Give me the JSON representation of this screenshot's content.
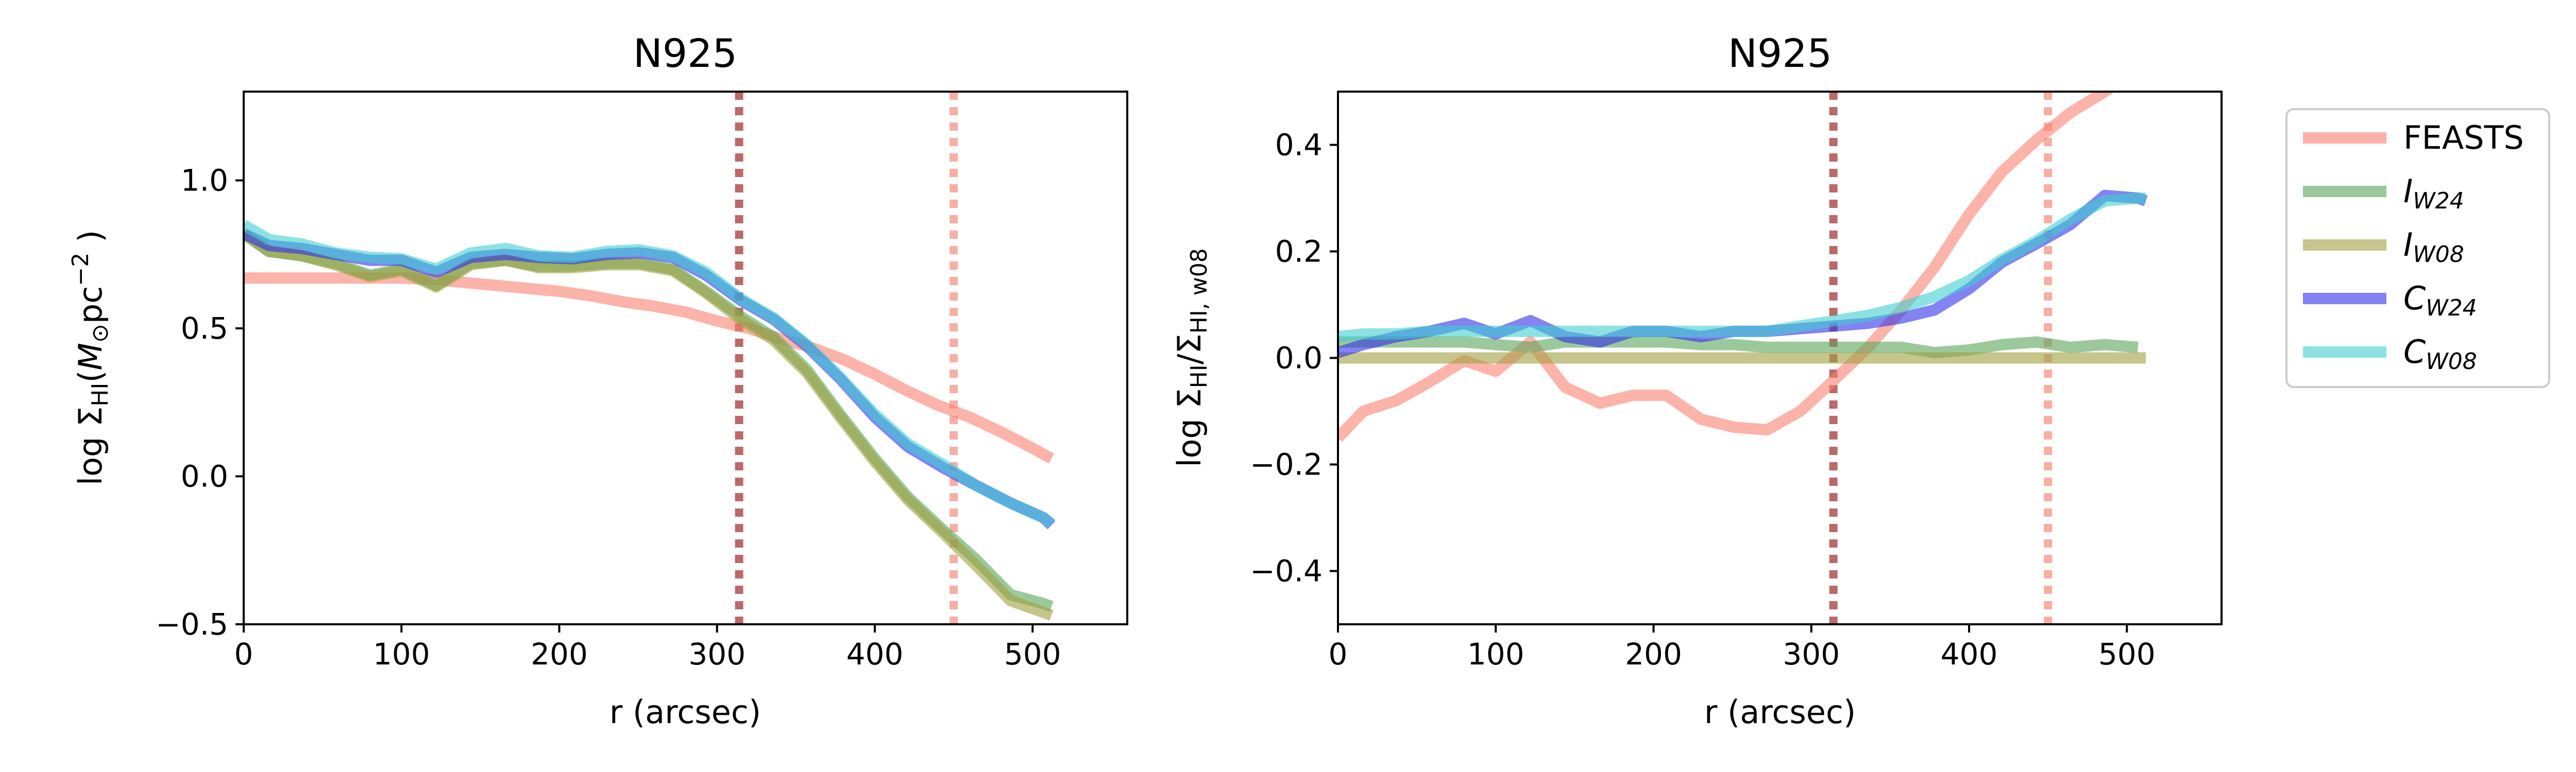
{
  "legend": {
    "entries": [
      {
        "key": "feasts",
        "label": "FEASTS",
        "italic": false,
        "sub": "",
        "color": "#fa8072"
      },
      {
        "key": "iw24",
        "label": "I",
        "italic": true,
        "sub": "W24",
        "color": "#5aa55a"
      },
      {
        "key": "iw08",
        "label": "I",
        "italic": true,
        "sub": "W08",
        "color": "#a0a040"
      },
      {
        "key": "cw24",
        "label": "C",
        "italic": true,
        "sub": "W24",
        "color": "#3030e8"
      },
      {
        "key": "cw08",
        "label": "C",
        "italic": true,
        "sub": "W08",
        "color": "#40cfd0"
      }
    ],
    "placement": "right, outside"
  },
  "chart_data": [
    {
      "type": "line",
      "title": "N925",
      "xlabel": "r (arcsec)",
      "ylabel": "log Σ_HI (M_⊙ pc^-2 )",
      "xlim": [
        0,
        560
      ],
      "ylim": [
        -0.5,
        1.3
      ],
      "xticks": [
        0,
        100,
        200,
        300,
        400,
        500
      ],
      "yticks": [
        -0.5,
        0.0,
        0.5,
        1.0
      ],
      "ytick_labels": [
        "−0.5",
        "0.0",
        "0.5",
        "1.0"
      ],
      "grid": false,
      "vlines": [
        {
          "x": 314,
          "color": "#b05050"
        },
        {
          "x": 450,
          "color": "#f6a096"
        }
      ],
      "series": [
        {
          "key": "feasts",
          "x": [
            0,
            20,
            40,
            60,
            80,
            100,
            120,
            140,
            160,
            180,
            200,
            220,
            240,
            260,
            280,
            300,
            320,
            340,
            360,
            380,
            400,
            420,
            440,
            460,
            480,
            500,
            512
          ],
          "y": [
            0.67,
            0.67,
            0.67,
            0.67,
            0.67,
            0.67,
            0.665,
            0.655,
            0.645,
            0.635,
            0.625,
            0.61,
            0.59,
            0.575,
            0.555,
            0.525,
            0.5,
            0.465,
            0.435,
            0.395,
            0.345,
            0.29,
            0.24,
            0.2,
            0.15,
            0.095,
            0.06
          ]
        },
        {
          "key": "iw24",
          "x": [
            0,
            16,
            37,
            58,
            80,
            100,
            122,
            144,
            166,
            187,
            208,
            230,
            251,
            272,
            293,
            315,
            336,
            357,
            378,
            400,
            421,
            443,
            464,
            486,
            507,
            512
          ],
          "y": [
            0.82,
            0.76,
            0.745,
            0.72,
            0.68,
            0.7,
            0.645,
            0.72,
            0.73,
            0.71,
            0.71,
            0.72,
            0.72,
            0.7,
            0.625,
            0.54,
            0.47,
            0.36,
            0.21,
            0.06,
            -0.07,
            -0.18,
            -0.28,
            -0.4,
            -0.43,
            -0.44
          ]
        },
        {
          "key": "iw08",
          "x": [
            0,
            16,
            37,
            58,
            80,
            100,
            122,
            144,
            166,
            187,
            208,
            230,
            251,
            272,
            293,
            315,
            336,
            357,
            378,
            400,
            421,
            443,
            464,
            486,
            507,
            512
          ],
          "y": [
            0.82,
            0.76,
            0.745,
            0.715,
            0.675,
            0.695,
            0.64,
            0.715,
            0.73,
            0.705,
            0.705,
            0.715,
            0.715,
            0.695,
            0.62,
            0.53,
            0.46,
            0.35,
            0.2,
            0.05,
            -0.08,
            -0.19,
            -0.3,
            -0.42,
            -0.46,
            -0.47
          ]
        },
        {
          "key": "cw24",
          "x": [
            0,
            16,
            37,
            58,
            80,
            100,
            122,
            144,
            166,
            187,
            208,
            230,
            251,
            272,
            293,
            315,
            336,
            357,
            378,
            400,
            421,
            443,
            464,
            486,
            507,
            512
          ],
          "y": [
            0.82,
            0.78,
            0.77,
            0.75,
            0.73,
            0.73,
            0.69,
            0.74,
            0.75,
            0.74,
            0.735,
            0.75,
            0.755,
            0.74,
            0.68,
            0.595,
            0.53,
            0.44,
            0.33,
            0.2,
            0.1,
            0.03,
            -0.03,
            -0.09,
            -0.14,
            -0.165
          ]
        },
        {
          "key": "cw08",
          "x": [
            0,
            16,
            37,
            58,
            80,
            100,
            122,
            144,
            166,
            187,
            208,
            230,
            251,
            272,
            293,
            315,
            336,
            357,
            378,
            400,
            421,
            443,
            464,
            486,
            507,
            512
          ],
          "y": [
            0.85,
            0.8,
            0.785,
            0.755,
            0.74,
            0.735,
            0.7,
            0.755,
            0.77,
            0.745,
            0.74,
            0.76,
            0.765,
            0.745,
            0.69,
            0.6,
            0.535,
            0.445,
            0.335,
            0.21,
            0.11,
            0.04,
            -0.03,
            -0.09,
            -0.14,
            -0.16
          ]
        }
      ]
    },
    {
      "type": "line",
      "title": "N925",
      "xlabel": "r (arcsec)",
      "ylabel": "log Σ_HI/Σ_HI, w08",
      "xlim": [
        0,
        560
      ],
      "ylim": [
        -0.5,
        0.5
      ],
      "xticks": [
        0,
        100,
        200,
        300,
        400,
        500
      ],
      "yticks": [
        -0.4,
        -0.2,
        0.0,
        0.2,
        0.4
      ],
      "ytick_labels": [
        "−0.4",
        "−0.2",
        "0.0",
        "0.2",
        "0.4"
      ],
      "grid": false,
      "vlines": [
        {
          "x": 314,
          "color": "#b05050"
        },
        {
          "x": 450,
          "color": "#f6a096"
        }
      ],
      "series": [
        {
          "key": "feasts",
          "x": [
            0,
            16,
            37,
            58,
            80,
            100,
            122,
            144,
            166,
            187,
            208,
            230,
            251,
            272,
            293,
            315,
            336,
            357,
            378,
            400,
            421,
            443,
            464,
            486,
            507
          ],
          "y": [
            -0.15,
            -0.1,
            -0.08,
            -0.045,
            -0.005,
            -0.025,
            0.03,
            -0.055,
            -0.085,
            -0.07,
            -0.07,
            -0.115,
            -0.13,
            -0.135,
            -0.1,
            -0.04,
            0.02,
            0.09,
            0.17,
            0.27,
            0.35,
            0.41,
            0.46,
            0.5,
            0.54
          ]
        },
        {
          "key": "iw24",
          "x": [
            0,
            16,
            37,
            58,
            80,
            100,
            122,
            144,
            166,
            187,
            208,
            230,
            251,
            272,
            293,
            315,
            336,
            357,
            378,
            400,
            421,
            443,
            464,
            486,
            507
          ],
          "y": [
            0.03,
            0.03,
            0.03,
            0.03,
            0.03,
            0.025,
            0.02,
            0.03,
            0.03,
            0.03,
            0.03,
            0.025,
            0.025,
            0.02,
            0.02,
            0.02,
            0.02,
            0.02,
            0.01,
            0.015,
            0.025,
            0.03,
            0.02,
            0.025,
            0.02
          ]
        },
        {
          "key": "iw08",
          "x": [
            0,
            50,
            100,
            150,
            200,
            250,
            300,
            350,
            400,
            450,
            512
          ],
          "y": [
            0,
            0,
            0,
            0,
            0,
            0,
            0,
            0,
            0,
            0,
            0
          ]
        },
        {
          "key": "cw24",
          "x": [
            0,
            16,
            37,
            58,
            80,
            100,
            122,
            144,
            166,
            187,
            208,
            230,
            251,
            272,
            293,
            315,
            336,
            357,
            378,
            400,
            421,
            443,
            464,
            486,
            507,
            512
          ],
          "y": [
            0.01,
            0.025,
            0.04,
            0.05,
            0.065,
            0.045,
            0.07,
            0.04,
            0.03,
            0.05,
            0.05,
            0.04,
            0.05,
            0.05,
            0.055,
            0.06,
            0.065,
            0.075,
            0.09,
            0.13,
            0.18,
            0.215,
            0.25,
            0.305,
            0.3,
            0.295
          ]
        },
        {
          "key": "cw08",
          "x": [
            0,
            16,
            37,
            58,
            80,
            100,
            122,
            144,
            166,
            187,
            208,
            230,
            251,
            272,
            293,
            315,
            336,
            357,
            378,
            400,
            421,
            443,
            464,
            486,
            507,
            512
          ],
          "y": [
            0.04,
            0.045,
            0.045,
            0.05,
            0.05,
            0.05,
            0.05,
            0.05,
            0.05,
            0.05,
            0.05,
            0.05,
            0.05,
            0.05,
            0.06,
            0.07,
            0.08,
            0.095,
            0.115,
            0.145,
            0.185,
            0.22,
            0.26,
            0.295,
            0.3,
            0.3
          ]
        }
      ]
    }
  ]
}
